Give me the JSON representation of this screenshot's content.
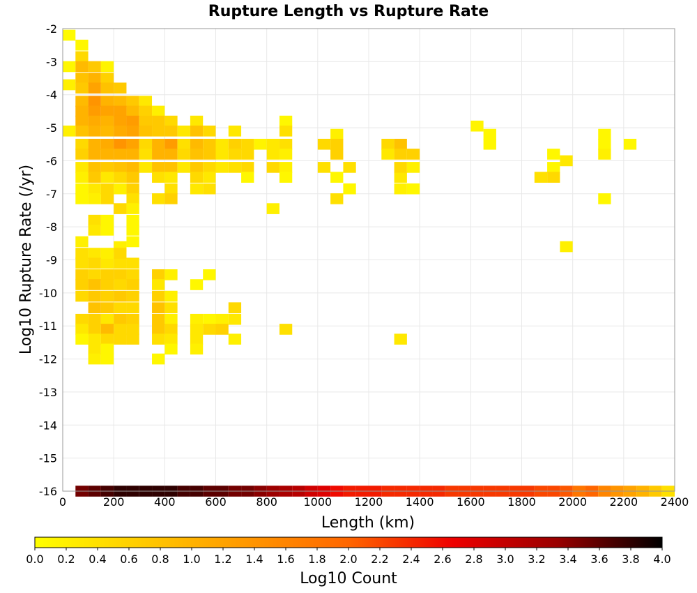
{
  "chart_data": {
    "type": "heatmap",
    "title": "Rupture Length vs Rupture Rate",
    "xlabel": "Length (km)",
    "ylabel": "Log10 Rupture Rate (/yr)",
    "xlim": [
      0,
      2400
    ],
    "ylim": [
      -16,
      -2
    ],
    "x_ticks": [
      0,
      200,
      400,
      600,
      800,
      1000,
      1200,
      1400,
      1600,
      1800,
      2000,
      2200,
      2400
    ],
    "y_ticks": [
      -2,
      -3,
      -4,
      -5,
      -6,
      -7,
      -8,
      -9,
      -10,
      -11,
      -12,
      -13,
      -14,
      -15,
      -16
    ],
    "x_tick_labels": [
      "0",
      "200",
      "400",
      "600",
      "800",
      "1000",
      "1200",
      "1400",
      "1600",
      "1800",
      "2000",
      "2200",
      "2400"
    ],
    "y_tick_labels": [
      "-2",
      "-3",
      "-4",
      "-5",
      "-6",
      "-7",
      "-8",
      "-9",
      "-10",
      "-11",
      "-12",
      "-13",
      "-14",
      "-15",
      "-16"
    ],
    "grid": true,
    "colorbar": {
      "label": "Log10 Count",
      "range": [
        0,
        4
      ],
      "ticks": [
        "0.0",
        "0.2",
        "0.4",
        "0.6",
        "0.8",
        "1.0",
        "1.2",
        "1.4",
        "1.6",
        "1.8",
        "2.0",
        "2.2",
        "2.4",
        "2.6",
        "2.8",
        "3.0",
        "3.2",
        "3.4",
        "3.6",
        "3.8",
        "4.0"
      ],
      "colors": [
        "#ffff00",
        "#ffcc00",
        "#ff9900",
        "#ff6600",
        "#ee0000",
        "#990000",
        "#000000"
      ]
    },
    "bin_size": {
      "x": 50,
      "y": 0.33
    },
    "cells": [
      [
        25,
        -2.2,
        0.05
      ],
      [
        75,
        -2.5,
        0.1
      ],
      [
        25,
        -3.15,
        0.1
      ],
      [
        75,
        -2.85,
        0.5
      ],
      [
        125,
        -3.15,
        0.7
      ],
      [
        75,
        -3.15,
        0.9
      ],
      [
        75,
        -3.5,
        0.8
      ],
      [
        125,
        -3.5,
        1.0
      ],
      [
        175,
        -3.15,
        0.15
      ],
      [
        125,
        -3.8,
        1.2
      ],
      [
        175,
        -3.5,
        0.6
      ],
      [
        25,
        -3.7,
        0.2
      ],
      [
        75,
        -3.8,
        0.7
      ],
      [
        125,
        -4.2,
        1.4
      ],
      [
        175,
        -3.8,
        0.8
      ],
      [
        225,
        -3.8,
        0.7
      ],
      [
        75,
        -4.2,
        0.9
      ],
      [
        175,
        -4.2,
        1.0
      ],
      [
        225,
        -4.2,
        0.9
      ],
      [
        275,
        -4.2,
        0.7
      ],
      [
        325,
        -4.2,
        0.3
      ],
      [
        75,
        -4.5,
        1.0
      ],
      [
        125,
        -4.5,
        1.3
      ],
      [
        175,
        -4.5,
        1.2
      ],
      [
        225,
        -4.5,
        1.2
      ],
      [
        275,
        -4.5,
        0.9
      ],
      [
        325,
        -4.5,
        0.6
      ],
      [
        375,
        -4.5,
        0.2
      ],
      [
        75,
        -4.8,
        1.0
      ],
      [
        125,
        -4.8,
        1.1
      ],
      [
        175,
        -4.8,
        1.0
      ],
      [
        225,
        -4.8,
        1.2
      ],
      [
        275,
        -4.8,
        1.3
      ],
      [
        325,
        -4.8,
        0.7
      ],
      [
        375,
        -4.8,
        0.7
      ],
      [
        425,
        -4.8,
        0.5
      ],
      [
        525,
        -4.8,
        0.3
      ],
      [
        875,
        -4.8,
        0.1
      ],
      [
        75,
        -5.1,
        0.8
      ],
      [
        125,
        -5.1,
        1.0
      ],
      [
        175,
        -5.1,
        0.9
      ],
      [
        225,
        -5.1,
        1.1
      ],
      [
        275,
        -5.1,
        1.2
      ],
      [
        325,
        -5.1,
        0.8
      ],
      [
        375,
        -5.1,
        0.7
      ],
      [
        425,
        -5.1,
        0.7
      ],
      [
        475,
        -5.1,
        0.3
      ],
      [
        525,
        -5.1,
        0.8
      ],
      [
        575,
        -5.1,
        0.5
      ],
      [
        675,
        -5.1,
        0.3
      ],
      [
        875,
        -5.1,
        0.4
      ],
      [
        1625,
        -4.95,
        0.15
      ],
      [
        25,
        -5.1,
        0.2
      ],
      [
        75,
        -5.5,
        0.5
      ],
      [
        125,
        -5.5,
        1.0
      ],
      [
        175,
        -5.5,
        1.1
      ],
      [
        225,
        -5.5,
        1.4
      ],
      [
        275,
        -5.5,
        1.2
      ],
      [
        325,
        -5.5,
        0.5
      ],
      [
        375,
        -5.5,
        1.0
      ],
      [
        425,
        -5.5,
        1.3
      ],
      [
        475,
        -5.5,
        0.4
      ],
      [
        525,
        -5.5,
        0.9
      ],
      [
        575,
        -5.5,
        0.7
      ],
      [
        625,
        -5.5,
        0.3
      ],
      [
        675,
        -5.5,
        0.6
      ],
      [
        725,
        -5.5,
        0.5
      ],
      [
        775,
        -5.5,
        0.15
      ],
      [
        825,
        -5.5,
        0.3
      ],
      [
        875,
        -5.5,
        0.4
      ],
      [
        1075,
        -5.2,
        0.2
      ],
      [
        1675,
        -5.2,
        0.1
      ],
      [
        2125,
        -5.2,
        0.1
      ],
      [
        75,
        -5.8,
        0.6
      ],
      [
        125,
        -5.8,
        1.0
      ],
      [
        175,
        -5.8,
        1.0
      ],
      [
        225,
        -5.8,
        1.0
      ],
      [
        275,
        -5.8,
        1.0
      ],
      [
        325,
        -5.8,
        0.4
      ],
      [
        375,
        -5.8,
        1.0
      ],
      [
        425,
        -5.8,
        1.0
      ],
      [
        475,
        -5.8,
        0.5
      ],
      [
        525,
        -5.8,
        0.8
      ],
      [
        575,
        -5.8,
        0.7
      ],
      [
        625,
        -5.8,
        0.3
      ],
      [
        675,
        -5.8,
        0.5
      ],
      [
        725,
        -5.8,
        0.5
      ],
      [
        825,
        -5.8,
        0.3
      ],
      [
        875,
        -5.8,
        0.2
      ],
      [
        1025,
        -5.5,
        0.5
      ],
      [
        1075,
        -5.5,
        0.6
      ],
      [
        1325,
        -5.5,
        0.8
      ],
      [
        1375,
        -5.8,
        0.6
      ],
      [
        1275,
        -5.5,
        0.5
      ],
      [
        1925,
        -5.8,
        0.1
      ],
      [
        2125,
        -5.5,
        0.1
      ],
      [
        2225,
        -5.5,
        0.1
      ],
      [
        1675,
        -5.5,
        0.1
      ],
      [
        75,
        -6.2,
        0.3
      ],
      [
        125,
        -6.2,
        0.8
      ],
      [
        175,
        -6.2,
        0.7
      ],
      [
        225,
        -6.2,
        0.8
      ],
      [
        275,
        -6.2,
        0.9
      ],
      [
        325,
        -6.2,
        0.3
      ],
      [
        375,
        -6.2,
        0.8
      ],
      [
        425,
        -6.2,
        0.8
      ],
      [
        475,
        -6.2,
        0.3
      ],
      [
        525,
        -6.2,
        0.7
      ],
      [
        575,
        -6.2,
        0.5
      ],
      [
        625,
        -6.2,
        0.3
      ],
      [
        675,
        -6.2,
        0.4
      ],
      [
        725,
        -6.2,
        0.5
      ],
      [
        825,
        -6.2,
        0.5
      ],
      [
        875,
        -6.2,
        0.2
      ],
      [
        1025,
        -6.2,
        0.4
      ],
      [
        1075,
        -5.8,
        0.6
      ],
      [
        1125,
        -6.2,
        0.4
      ],
      [
        1275,
        -5.8,
        0.3
      ],
      [
        1325,
        -5.8,
        0.6
      ],
      [
        1975,
        -6.0,
        0.3
      ],
      [
        2125,
        -5.8,
        0.2
      ],
      [
        1925,
        -6.2,
        0.1
      ],
      [
        75,
        -6.5,
        0.2
      ],
      [
        125,
        -6.5,
        0.7
      ],
      [
        175,
        -6.5,
        0.3
      ],
      [
        225,
        -6.5,
        0.5
      ],
      [
        275,
        -6.5,
        0.7
      ],
      [
        375,
        -6.5,
        0.4
      ],
      [
        425,
        -6.5,
        0.3
      ],
      [
        525,
        -6.5,
        0.5
      ],
      [
        575,
        -6.5,
        0.3
      ],
      [
        725,
        -6.5,
        0.1
      ],
      [
        875,
        -6.5,
        0.1
      ],
      [
        1075,
        -6.5,
        0.1
      ],
      [
        1325,
        -6.5,
        0.3
      ],
      [
        1375,
        -6.2,
        0.2
      ],
      [
        1875,
        -6.5,
        0.4
      ],
      [
        1925,
        -6.5,
        0.5
      ],
      [
        1325,
        -6.2,
        0.5
      ],
      [
        75,
        -6.85,
        0.1
      ],
      [
        125,
        -6.85,
        0.3
      ],
      [
        175,
        -6.85,
        0.5
      ],
      [
        225,
        -6.85,
        0.2
      ],
      [
        275,
        -6.85,
        0.6
      ],
      [
        425,
        -6.85,
        0.4
      ],
      [
        525,
        -6.85,
        0.3
      ],
      [
        575,
        -6.85,
        0.4
      ],
      [
        1125,
        -6.85,
        0.1
      ],
      [
        1325,
        -6.85,
        0.2
      ],
      [
        1375,
        -6.85,
        0.1
      ],
      [
        75,
        -7.15,
        0.1
      ],
      [
        125,
        -7.15,
        0.2
      ],
      [
        175,
        -7.15,
        0.5
      ],
      [
        275,
        -7.15,
        0.4
      ],
      [
        375,
        -7.15,
        0.4
      ],
      [
        425,
        -7.15,
        0.6
      ],
      [
        1075,
        -7.15,
        0.4
      ],
      [
        2125,
        -7.15,
        0.1
      ],
      [
        225,
        -7.45,
        0.5
      ],
      [
        275,
        -7.45,
        0.2
      ],
      [
        825,
        -7.45,
        0.2
      ],
      [
        125,
        -7.8,
        0.4
      ],
      [
        175,
        -7.8,
        0.1
      ],
      [
        275,
        -7.8,
        0.1
      ],
      [
        125,
        -8.1,
        0.3
      ],
      [
        175,
        -8.1,
        0.1
      ],
      [
        275,
        -8.1,
        0.1
      ],
      [
        75,
        -8.45,
        0.2
      ],
      [
        275,
        -8.45,
        0.1
      ],
      [
        75,
        -8.8,
        0.4
      ],
      [
        125,
        -8.8,
        0.3
      ],
      [
        225,
        -8.6,
        0.2
      ],
      [
        1975,
        -8.6,
        0.2
      ],
      [
        75,
        -9.1,
        0.4
      ],
      [
        125,
        -9.1,
        0.5
      ],
      [
        175,
        -9.1,
        0.3
      ],
      [
        225,
        -9.1,
        0.4
      ],
      [
        275,
        -9.1,
        0.4
      ],
      [
        175,
        -8.8,
        0.2
      ],
      [
        225,
        -8.8,
        0.5
      ],
      [
        75,
        -9.45,
        0.6
      ],
      [
        125,
        -9.45,
        0.5
      ],
      [
        175,
        -9.45,
        0.6
      ],
      [
        225,
        -9.45,
        0.6
      ],
      [
        275,
        -9.45,
        0.5
      ],
      [
        375,
        -9.45,
        0.6
      ],
      [
        425,
        -9.45,
        0.2
      ],
      [
        575,
        -9.45,
        0.1
      ],
      [
        75,
        -9.75,
        0.6
      ],
      [
        125,
        -9.75,
        0.8
      ],
      [
        175,
        -9.75,
        0.6
      ],
      [
        225,
        -9.75,
        0.5
      ],
      [
        275,
        -9.75,
        0.6
      ],
      [
        375,
        -9.75,
        0.3
      ],
      [
        525,
        -9.75,
        0.1
      ],
      [
        75,
        -10.1,
        0.5
      ],
      [
        125,
        -10.1,
        0.7
      ],
      [
        175,
        -10.1,
        0.6
      ],
      [
        225,
        -10.1,
        0.7
      ],
      [
        275,
        -10.1,
        0.6
      ],
      [
        375,
        -10.1,
        0.6
      ],
      [
        425,
        -10.1,
        0.2
      ],
      [
        125,
        -10.45,
        0.8
      ],
      [
        175,
        -10.45,
        0.7
      ],
      [
        225,
        -10.45,
        0.5
      ],
      [
        275,
        -10.45,
        0.5
      ],
      [
        375,
        -10.45,
        0.8
      ],
      [
        425,
        -10.45,
        0.4
      ],
      [
        675,
        -10.45,
        0.5
      ],
      [
        75,
        -10.8,
        0.5
      ],
      [
        125,
        -10.8,
        0.6
      ],
      [
        175,
        -10.8,
        0.3
      ],
      [
        225,
        -10.8,
        0.7
      ],
      [
        275,
        -10.8,
        0.6
      ],
      [
        375,
        -10.8,
        0.7
      ],
      [
        425,
        -10.8,
        0.2
      ],
      [
        525,
        -10.8,
        0.2
      ],
      [
        575,
        -10.8,
        0.1
      ],
      [
        625,
        -10.8,
        0.2
      ],
      [
        675,
        -10.8,
        0.3
      ],
      [
        75,
        -11.1,
        0.3
      ],
      [
        125,
        -11.1,
        0.6
      ],
      [
        175,
        -11.1,
        0.9
      ],
      [
        225,
        -11.1,
        0.5
      ],
      [
        275,
        -11.1,
        0.5
      ],
      [
        375,
        -11.1,
        0.7
      ],
      [
        425,
        -11.1,
        0.5
      ],
      [
        525,
        -11.1,
        0.3
      ],
      [
        575,
        -11.1,
        0.5
      ],
      [
        625,
        -11.1,
        0.6
      ],
      [
        875,
        -11.1,
        0.4
      ],
      [
        75,
        -11.4,
        0.1
      ],
      [
        125,
        -11.4,
        0.3
      ],
      [
        175,
        -11.4,
        0.5
      ],
      [
        225,
        -11.4,
        0.5
      ],
      [
        275,
        -11.4,
        0.5
      ],
      [
        375,
        -11.4,
        0.4
      ],
      [
        425,
        -11.4,
        0.3
      ],
      [
        525,
        -11.4,
        0.3
      ],
      [
        675,
        -11.4,
        0.2
      ],
      [
        1325,
        -11.4,
        0.3
      ],
      [
        125,
        -11.7,
        0.3
      ],
      [
        175,
        -11.7,
        0.1
      ],
      [
        425,
        -11.7,
        0.1
      ],
      [
        525,
        -11.7,
        0.2
      ],
      [
        125,
        -12.0,
        0.2
      ],
      [
        175,
        -12.0,
        0.1
      ],
      [
        375,
        -12.0,
        0.1
      ],
      [
        75,
        -16.0,
        3.5
      ],
      [
        125,
        -16.0,
        3.6
      ],
      [
        175,
        -16.0,
        3.7
      ],
      [
        225,
        -16.0,
        3.8
      ],
      [
        275,
        -16.0,
        3.8
      ],
      [
        325,
        -16.0,
        3.8
      ],
      [
        375,
        -16.0,
        3.8
      ],
      [
        425,
        -16.0,
        3.8
      ],
      [
        475,
        -16.0,
        3.7
      ],
      [
        525,
        -16.0,
        3.7
      ],
      [
        575,
        -16.0,
        3.6
      ],
      [
        625,
        -16.0,
        3.6
      ],
      [
        675,
        -16.0,
        3.5
      ],
      [
        725,
        -16.0,
        3.5
      ],
      [
        775,
        -16.0,
        3.4
      ],
      [
        825,
        -16.0,
        3.3
      ],
      [
        875,
        -16.0,
        3.2
      ],
      [
        925,
        -16.0,
        3.1
      ],
      [
        975,
        -16.0,
        2.9
      ],
      [
        1025,
        -16.0,
        2.8
      ],
      [
        1075,
        -16.0,
        2.6
      ],
      [
        1125,
        -16.0,
        2.5
      ],
      [
        1175,
        -16.0,
        2.5
      ],
      [
        1225,
        -16.0,
        2.5
      ],
      [
        1275,
        -16.0,
        2.4
      ],
      [
        1325,
        -16.0,
        2.4
      ],
      [
        1375,
        -16.0,
        2.4
      ],
      [
        1425,
        -16.0,
        2.4
      ],
      [
        1475,
        -16.0,
        2.4
      ],
      [
        1525,
        -16.0,
        2.3
      ],
      [
        1575,
        -16.0,
        2.3
      ],
      [
        1625,
        -16.0,
        2.3
      ],
      [
        1675,
        -16.0,
        2.3
      ],
      [
        1725,
        -16.0,
        2.3
      ],
      [
        1775,
        -16.0,
        2.3
      ],
      [
        1825,
        -16.0,
        2.3
      ],
      [
        1875,
        -16.0,
        2.2
      ],
      [
        1925,
        -16.0,
        2.2
      ],
      [
        1975,
        -16.0,
        2.1
      ],
      [
        2025,
        -16.0,
        1.8
      ],
      [
        2075,
        -16.0,
        2.0
      ],
      [
        2125,
        -16.0,
        1.6
      ],
      [
        2175,
        -16.0,
        1.4
      ],
      [
        2225,
        -16.0,
        1.2
      ],
      [
        2275,
        -16.0,
        1.0
      ],
      [
        2325,
        -16.0,
        0.7
      ],
      [
        2375,
        -16.0,
        0.4
      ]
    ]
  }
}
